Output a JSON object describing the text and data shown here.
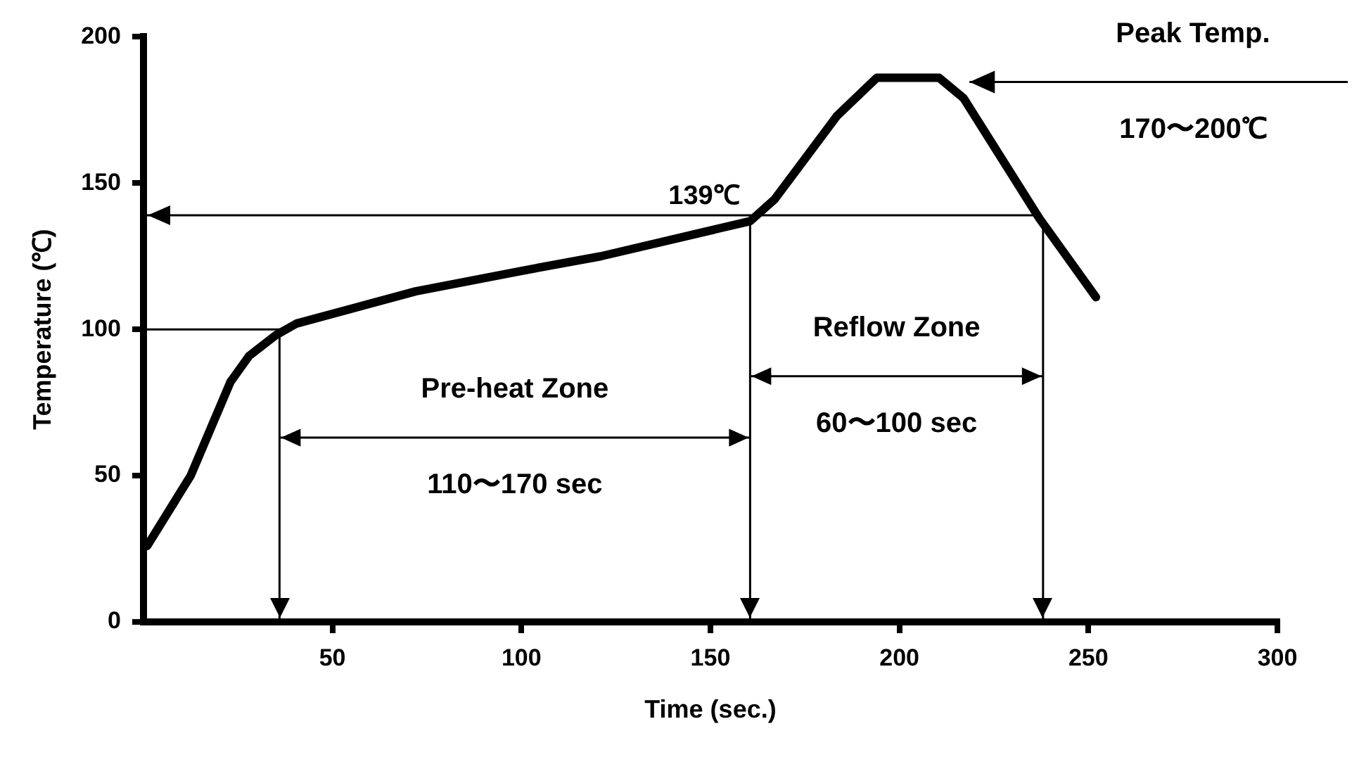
{
  "chart_data": {
    "type": "line",
    "xlabel": "Time (sec.)",
    "ylabel": "Temperature (℃)",
    "x": [
      1,
      12.5,
      23,
      28,
      35,
      40.5,
      72,
      100,
      121,
      160.5,
      167,
      183.5,
      194,
      210.5,
      217,
      237,
      252
    ],
    "series": [
      {
        "color": "#000000",
        "values": [
          26,
          50,
          82,
          91,
          98,
          102,
          113,
          120,
          125,
          137,
          144.5,
          173,
          186,
          186,
          179,
          138,
          111
        ]
      }
    ],
    "xlim": [
      0,
      300
    ],
    "xticks": [
      50,
      100,
      150,
      200,
      250,
      300
    ],
    "ylim": [
      0,
      200
    ],
    "yticks": [
      0,
      50,
      100,
      150,
      200
    ],
    "grid": false,
    "legend": false,
    "marker": "none",
    "line_style": "solid",
    "ref_lines": [
      {
        "axis": "y",
        "value": 139,
        "label": "139℃"
      },
      {
        "axis": "y",
        "value": 100
      },
      {
        "axis": "x",
        "value": 36
      },
      {
        "axis": "x",
        "value": 160.5
      },
      {
        "axis": "x",
        "value": 238
      }
    ],
    "annotations": [
      "Pre-heat Zone",
      "110〜170 sec",
      "Reflow Zone",
      "60〜100 sec",
      "Peak Temp.",
      "170〜200℃"
    ]
  }
}
